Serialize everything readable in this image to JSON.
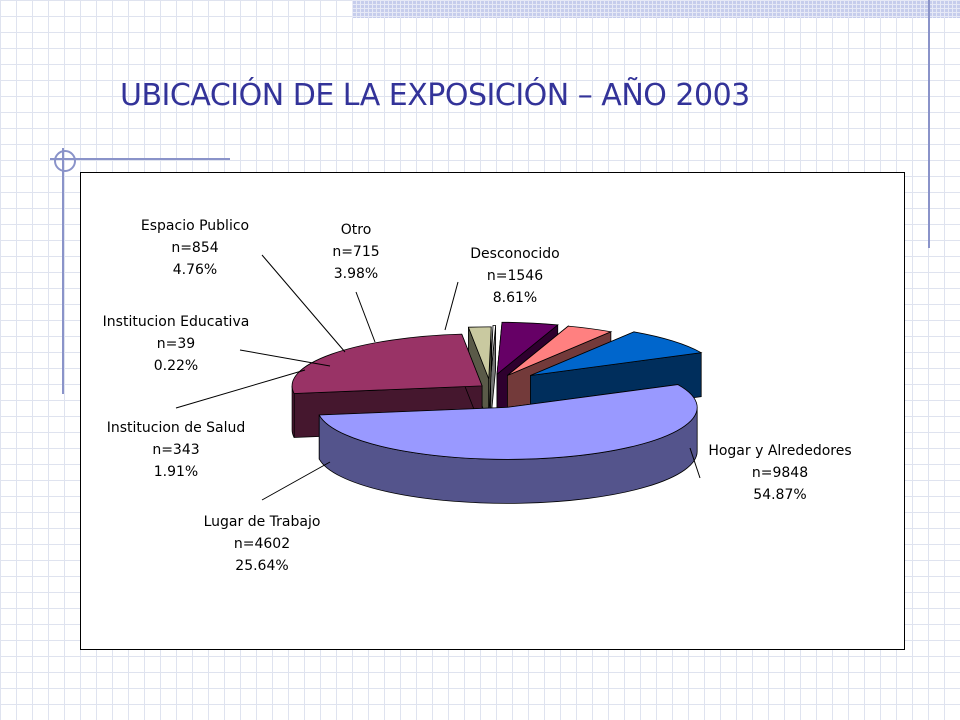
{
  "slide": {
    "title": "UBICACIÓN DE LA EXPOSICIÓN – AÑO 2003"
  },
  "chart_data": {
    "type": "pie",
    "style": "3d-exploded",
    "title": "",
    "slices": [
      {
        "label": "Hogar y Alrededores",
        "n_label": "n=9848",
        "pct_label": "54.87%",
        "value": 9848,
        "percent": 54.87,
        "color": "#9999ff"
      },
      {
        "label": "Lugar de Trabajo",
        "n_label": "n=4602",
        "pct_label": "25.64%",
        "value": 4602,
        "percent": 25.64,
        "color": "#993366"
      },
      {
        "label": "Institucion de Salud",
        "n_label": "n=343",
        "pct_label": "1.91%",
        "value": 343,
        "percent": 1.91,
        "color": "#c9c9a0"
      },
      {
        "label": "Institucion Educativa",
        "n_label": "n=39",
        "pct_label": "0.22%",
        "value": 39,
        "percent": 0.22,
        "color": "#ffffff"
      },
      {
        "label": "Espacio Publico",
        "n_label": "n=854",
        "pct_label": "4.76%",
        "value": 854,
        "percent": 4.76,
        "color": "#660066"
      },
      {
        "label": "Otro",
        "n_label": "n=715",
        "pct_label": "3.98%",
        "value": 715,
        "percent": 3.98,
        "color": "#ff8080"
      },
      {
        "label": "Desconocido",
        "n_label": "n=1546",
        "pct_label": "8.61%",
        "value": 1546,
        "percent": 8.61,
        "color": "#0066cc"
      }
    ]
  }
}
